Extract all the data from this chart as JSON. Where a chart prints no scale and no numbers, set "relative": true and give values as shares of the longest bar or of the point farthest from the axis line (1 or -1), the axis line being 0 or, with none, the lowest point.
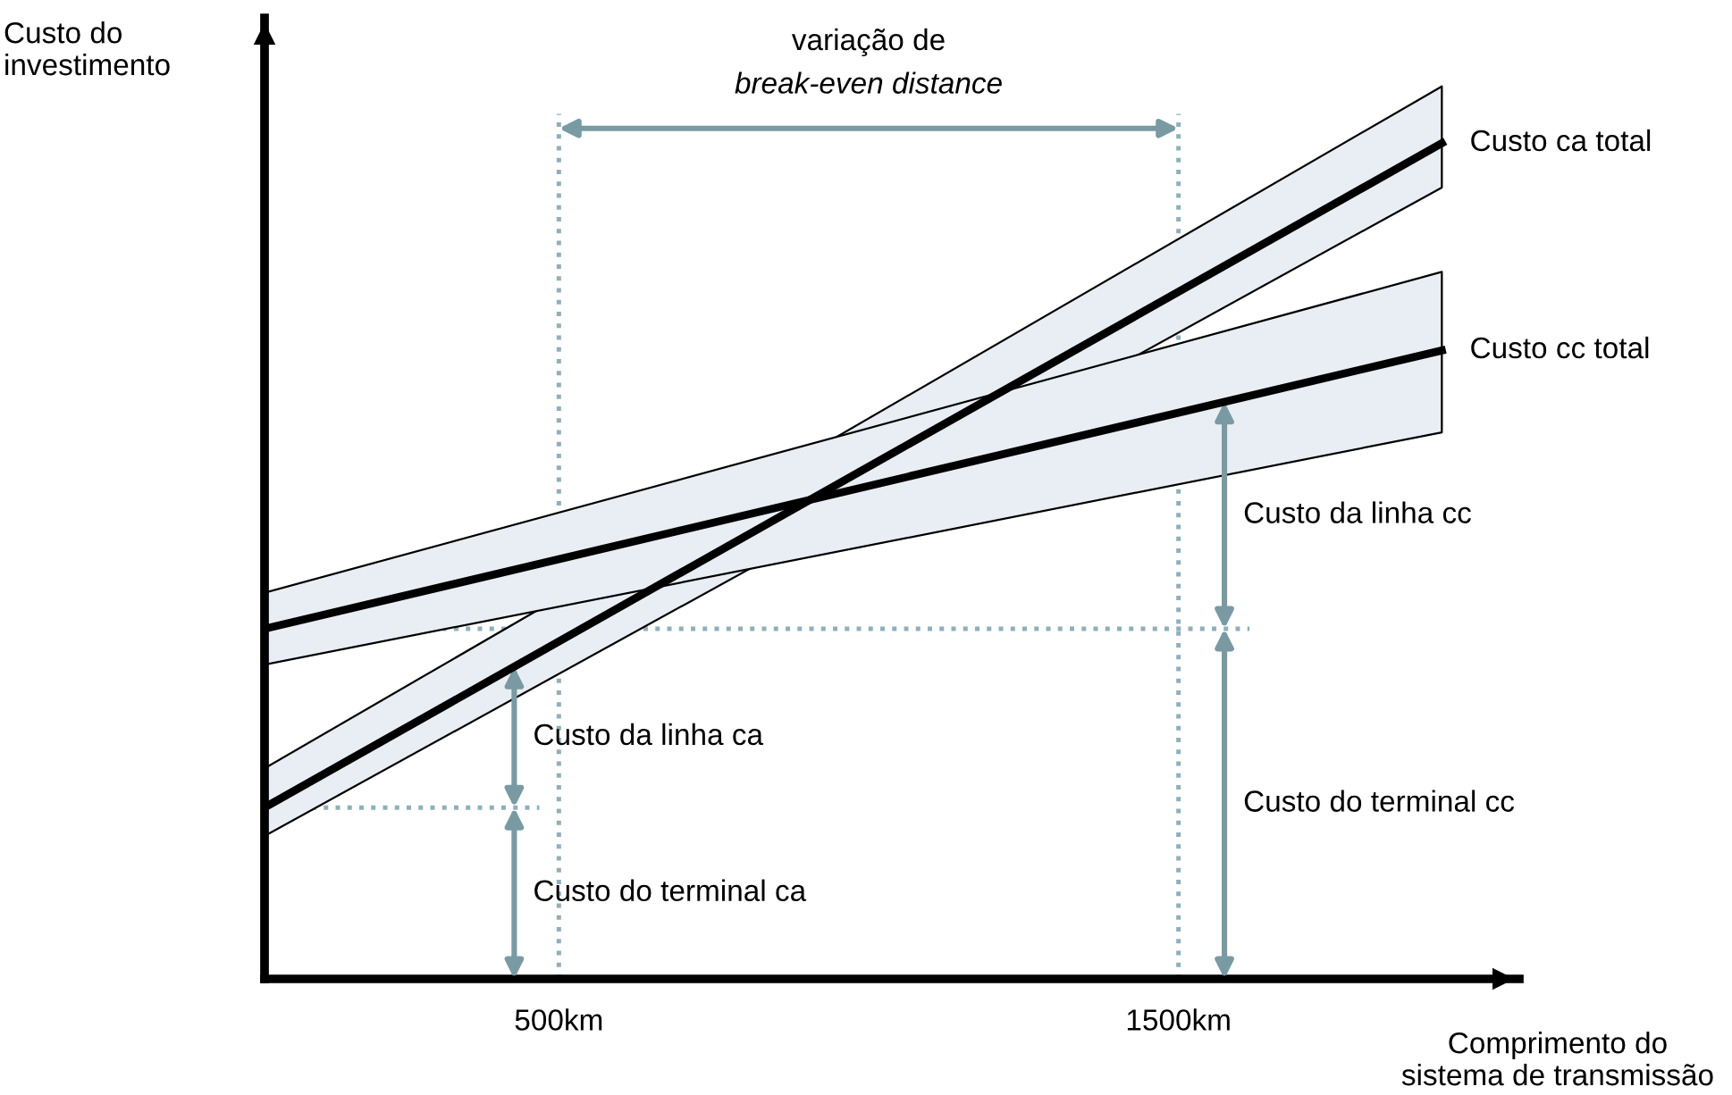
{
  "chart_data": {
    "type": "line",
    "relative": true,
    "xlabel": "Comprimento do\nsistema de transmissão",
    "ylabel": "Custo do\ninvestimento",
    "x": [
      25,
      1925
    ],
    "xlim": [
      25,
      2050
    ],
    "xticks": [
      {
        "value": 500,
        "label": "500km"
      },
      {
        "value": 1500,
        "label": "1500km"
      }
    ],
    "grid": false,
    "legend": false,
    "line_style": "solid",
    "marker": "none",
    "series": [
      {
        "name": "Custo ca total",
        "color": "#000000",
        "values": [
          0.205,
          1.0
        ],
        "lower": [
          0.171,
          0.947
        ],
        "upper": [
          0.252,
          1.068
        ]
      },
      {
        "name": "Custo cc total",
        "color": "#000000",
        "values": [
          0.419,
          0.752
        ],
        "lower": [
          0.376,
          0.654
        ],
        "upper": [
          0.462,
          0.846
        ]
      }
    ],
    "ref_lines": [
      {
        "axis": "x",
        "value": 500,
        "color": "#8fb0bb",
        "line_style": "dotted"
      },
      {
        "axis": "x",
        "value": 1500,
        "color": "#8fb0bb",
        "line_style": "dotted"
      },
      {
        "axis": "y",
        "value": 0.205,
        "color": "#8fb0bb",
        "line_style": "dotted"
      },
      {
        "axis": "y",
        "value": 0.419,
        "color": "#8fb0bb",
        "line_style": "dotted"
      }
    ],
    "annotations": [
      "variação de\nbreak-even distance",
      "Custo do terminal ca",
      "Custo da linha ca",
      "Custo do terminal cc",
      "Custo da linha cc"
    ]
  }
}
